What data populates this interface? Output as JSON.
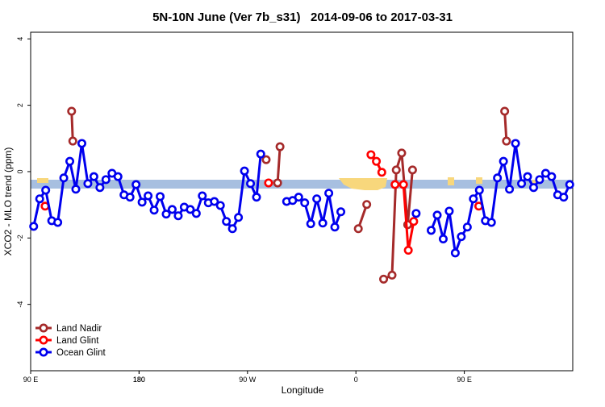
{
  "chart_data": {
    "type": "line",
    "title": "5N-10N June (Ver 7b_s31)   2014-09-06 to 2017-03-31",
    "x_label": "Longitude",
    "y_label": "XCO2 - MLO trend (ppm)",
    "xlim": [
      90,
      540
    ],
    "ylim": [
      -6,
      4.2
    ],
    "xticks": [
      {
        "value": 90,
        "label": "90 E"
      },
      180,
      {
        "value": 270,
        "label": "90 W"
      },
      {
        "value": 360,
        "label": "0"
      },
      {
        "value": 450,
        "label": "90 E"
      },
      180.0001
    ],
    "yticks": [
      -4,
      -2,
      0,
      2,
      4
    ],
    "legend": "bottom-left",
    "series": [
      {
        "name": "Land Nadir",
        "color": "#a52a2a",
        "x": [
          124,
          125,
          null,
          285.5,
          null,
          295,
          297,
          null,
          362,
          369,
          null,
          383,
          390,
          393.5,
          398,
          403,
          407,
          null,
          483.5,
          485
        ],
        "values": [
          1.82,
          0.92,
          null,
          0.36,
          null,
          -0.34,
          0.75,
          null,
          -1.72,
          -0.99,
          null,
          -3.24,
          -3.12,
          0.05,
          0.56,
          -1.6,
          0.05,
          null,
          1.82,
          0.92
        ]
      },
      {
        "name": "Land Glint",
        "color": "#ff0000",
        "x": [
          102,
          null,
          287.5,
          null,
          372.5,
          377,
          381.5,
          null,
          392.5,
          399.5,
          403.5,
          408,
          null,
          462
        ],
        "values": [
          -1.04,
          null,
          -0.34,
          null,
          0.51,
          0.31,
          -0.02,
          null,
          -0.39,
          -0.39,
          -2.37,
          -1.5,
          null,
          -1.04
        ]
      },
      {
        "name": "Ocean Glint",
        "color": "#0000ee",
        "x": [
          92.5,
          97.5,
          102.5,
          107.5,
          112.5,
          117.5,
          122.5,
          127.5,
          132.5,
          137.5,
          142.5,
          147.5,
          152.5,
          157.5,
          162.5,
          167.5,
          172.5,
          177.5,
          182.5,
          187.5,
          192.5,
          197.5,
          202.5,
          207.5,
          212.5,
          217.5,
          222.5,
          227.5,
          232.5,
          237.5,
          242.5,
          247.5,
          252.5,
          257.5,
          262.5,
          267.5,
          272.5,
          277.5,
          281,
          null,
          302.5,
          307.5,
          312.5,
          317.5,
          322.5,
          327.5,
          332.5,
          337.5,
          342.5,
          347.5,
          null,
          410,
          null,
          422.5,
          427.5,
          432.5,
          437.5,
          442.5,
          447.5,
          452.5,
          457.5,
          462.5,
          467.5,
          472.5,
          477.5,
          482.5,
          487.5,
          492.5,
          497.5,
          502.5,
          507.5,
          512.5,
          517.5,
          522.5,
          527.5,
          532.5,
          537.5
        ],
        "values": [
          -1.65,
          -0.82,
          -0.56,
          -1.48,
          -1.53,
          -0.19,
          0.31,
          -0.53,
          0.85,
          -0.36,
          -0.15,
          -0.48,
          -0.24,
          -0.05,
          -0.15,
          -0.7,
          -0.77,
          -0.39,
          -0.92,
          -0.73,
          -1.16,
          -0.75,
          -1.28,
          -1.14,
          -1.33,
          -1.07,
          -1.14,
          -1.26,
          -0.73,
          -0.94,
          -0.9,
          -1.02,
          -1.5,
          -1.72,
          -1.38,
          0.02,
          -0.36,
          -0.77,
          0.53,
          null,
          -0.9,
          -0.87,
          -0.77,
          -0.94,
          -1.57,
          -0.82,
          -1.55,
          -0.65,
          -1.67,
          -1.21,
          null,
          -1.26,
          null,
          -1.77,
          -1.31,
          -2.03,
          -1.19,
          -2.45,
          -1.96,
          -1.67,
          -0.82,
          -0.56,
          -1.48,
          -1.53,
          -0.19,
          0.31,
          -0.53,
          0.85,
          -0.36,
          -0.15,
          -0.48,
          -0.24,
          -0.05,
          -0.15,
          -0.7,
          -0.77,
          -0.39
        ]
      }
    ]
  }
}
